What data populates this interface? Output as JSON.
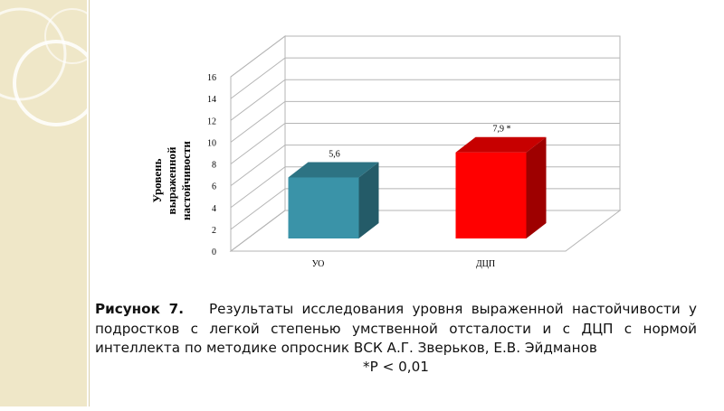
{
  "chart_data": {
    "type": "bar",
    "categories": [
      "УО",
      "ДЦП"
    ],
    "values": [
      5.6,
      7.9
    ],
    "data_labels": [
      "5,6",
      "7,9 *"
    ],
    "colors": [
      "#3a93a8",
      "#ff0000"
    ],
    "ylabel": "Уровень\nвыраженной\nнастойчивости",
    "ylim": [
      0,
      16
    ],
    "yticks": [
      0,
      2,
      4,
      6,
      8,
      10,
      12,
      14,
      16
    ],
    "grid": true,
    "three_d": true
  },
  "caption": {
    "prefix": "Рисунок 7.",
    "text": "Результаты исследования уровня выраженной настойчивости у подростков с легкой степенью умственной отсталости и с ДЦП с нормой интеллекта по методике опросник ВСК  А.Г. Зверьков, Е.В. Эйдманов",
    "footnote": "*Р < 0,01"
  }
}
